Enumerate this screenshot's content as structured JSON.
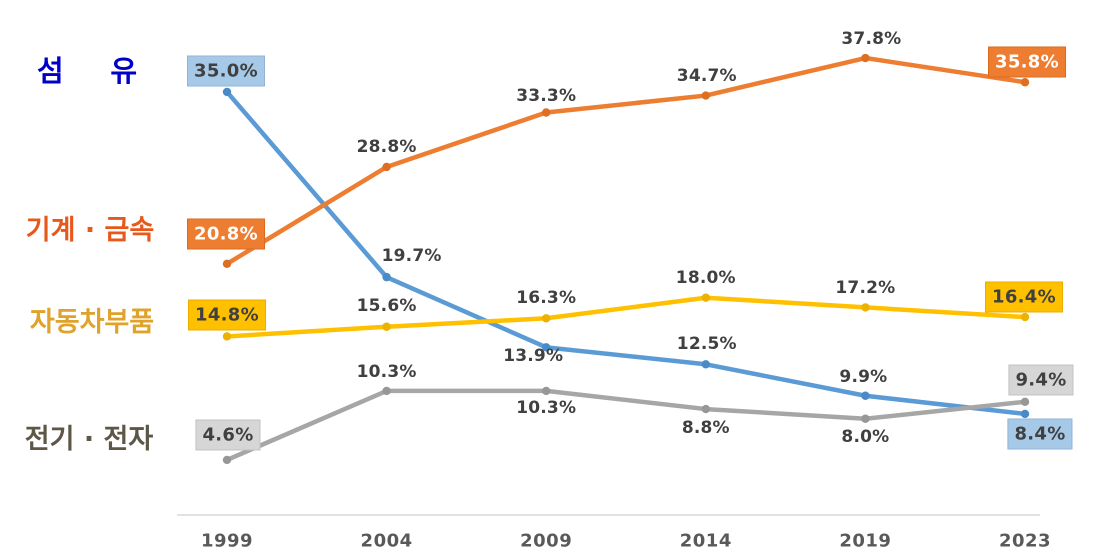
{
  "chart_data": {
    "type": "line",
    "title": "",
    "x": [
      "1999",
      "2004",
      "2009",
      "2014",
      "2019",
      "2023"
    ],
    "unit": "%",
    "ylim": [
      0,
      40
    ],
    "grid": false,
    "legend_position": "left",
    "axis": {
      "line_color": "#D9D9D9",
      "tick_label_color": "#595959"
    },
    "label_text_color": "#404040",
    "series": [
      {
        "name": "섬유",
        "line_color": "#5B9BD5",
        "marker_color": "#4A8AC6",
        "category_label_color": "#0000C8",
        "box": {
          "fill": "#A6C9E8",
          "border": "#93B3D8",
          "text": "#404040"
        },
        "values": [
          35.0,
          19.7,
          13.9,
          12.5,
          9.9,
          8.4
        ],
        "labels": [
          "35.0%",
          "19.7%",
          "13.9%",
          "12.5%",
          "9.9%",
          "8.4%"
        ]
      },
      {
        "name": "기계 · 금속",
        "line_color": "#ED7D31",
        "marker_color": "#DD6E22",
        "category_label_color": "#E8581B",
        "box": {
          "fill": "#ED7D31",
          "border": "#DB6B1D",
          "text": "#FFFFFF"
        },
        "values": [
          20.8,
          28.8,
          33.3,
          34.7,
          37.8,
          35.8
        ],
        "labels": [
          "20.8%",
          "28.8%",
          "33.3%",
          "34.7%",
          "37.8%",
          "35.8%"
        ]
      },
      {
        "name": "자동차부품",
        "line_color": "#FFC000",
        "marker_color": "#EDB100",
        "category_label_color": "#DFA32B",
        "box": {
          "fill": "#FFC000",
          "border": "#E9AE00",
          "text": "#404040"
        },
        "values": [
          14.8,
          15.6,
          16.3,
          18.0,
          17.2,
          16.4
        ],
        "labels": [
          "14.8%",
          "15.6%",
          "16.3%",
          "18.0%",
          "17.2%",
          "16.4%"
        ]
      },
      {
        "name": "전기 · 전자",
        "line_color": "#A6A6A6",
        "marker_color": "#979797",
        "category_label_color": "#5D5746",
        "box": {
          "fill": "#D6D6D6",
          "border": "#C3C3C3",
          "text": "#404040"
        },
        "values": [
          4.6,
          10.3,
          10.3,
          8.8,
          8.0,
          9.4
        ],
        "labels": [
          "4.6%",
          "10.3%",
          "10.3%",
          "8.8%",
          "8.0%",
          "9.4%"
        ]
      }
    ]
  }
}
